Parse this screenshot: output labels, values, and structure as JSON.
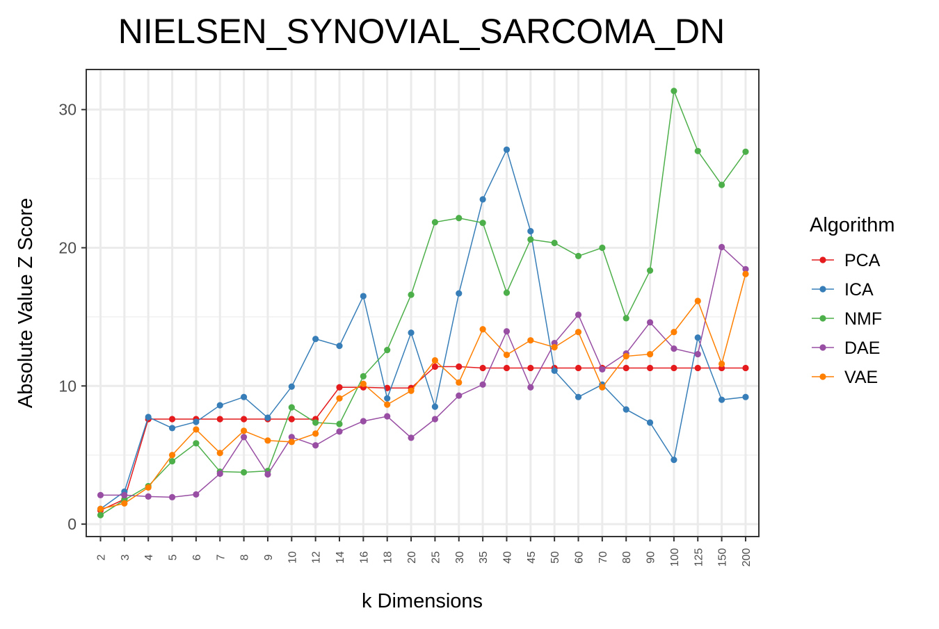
{
  "chart_data": {
    "type": "line",
    "title": "NIELSEN_SYNOVIAL_SARCOMA_DN",
    "xlabel": "k Dimensions",
    "ylabel": "Absolute Value Z Score",
    "categories": [
      "2",
      "3",
      "4",
      "5",
      "6",
      "7",
      "8",
      "9",
      "10",
      "12",
      "14",
      "16",
      "18",
      "20",
      "25",
      "30",
      "35",
      "40",
      "45",
      "50",
      "60",
      "70",
      "80",
      "90",
      "100",
      "125",
      "150",
      "200"
    ],
    "yticks": [
      0,
      10,
      20,
      30
    ],
    "ylim": [
      -0.9,
      32.9
    ],
    "grid": true,
    "legend": {
      "title": "Algorithm",
      "placement": "right"
    },
    "series": [
      {
        "name": "PCA",
        "color": "#e41a1c",
        "values": [
          1.0,
          1.8,
          7.6,
          7.6,
          7.6,
          7.6,
          7.6,
          7.6,
          7.6,
          7.6,
          9.9,
          9.9,
          9.85,
          9.85,
          11.4,
          11.4,
          11.3,
          11.3,
          11.3,
          11.3,
          11.3,
          11.3,
          11.3,
          11.3,
          11.3,
          11.3,
          11.3,
          11.3
        ]
      },
      {
        "name": "ICA",
        "color": "#377eb8",
        "values": [
          1.1,
          2.35,
          7.75,
          6.95,
          7.4,
          8.6,
          9.2,
          7.7,
          9.95,
          13.4,
          12.9,
          16.5,
          9.1,
          13.85,
          8.5,
          16.7,
          23.5,
          27.1,
          21.2,
          11.1,
          9.2,
          10.1,
          8.3,
          7.35,
          4.65,
          13.5,
          9.0,
          9.2
        ]
      },
      {
        "name": "NMF",
        "color": "#4daf4a",
        "values": [
          0.65,
          1.75,
          2.75,
          4.55,
          5.85,
          3.8,
          3.75,
          3.85,
          8.45,
          7.35,
          7.25,
          10.7,
          12.6,
          16.6,
          21.85,
          22.15,
          21.8,
          16.75,
          20.6,
          20.35,
          19.4,
          20.0,
          14.9,
          18.35,
          31.35,
          27.0,
          24.55,
          26.95
        ]
      },
      {
        "name": "DAE",
        "color": "#984ea3",
        "values": [
          2.1,
          2.1,
          2.0,
          1.95,
          2.15,
          3.65,
          6.3,
          3.6,
          6.3,
          5.7,
          6.7,
          7.45,
          7.8,
          6.25,
          7.6,
          9.3,
          10.1,
          13.95,
          9.9,
          13.1,
          15.15,
          11.2,
          12.35,
          14.6,
          12.7,
          12.3,
          20.05,
          18.45
        ]
      },
      {
        "name": "VAE",
        "color": "#ff7f00",
        "values": [
          1.1,
          1.5,
          2.65,
          5.0,
          6.85,
          5.15,
          6.75,
          6.05,
          5.95,
          6.55,
          9.1,
          10.15,
          8.65,
          9.65,
          11.85,
          10.25,
          14.1,
          12.25,
          13.3,
          12.8,
          13.9,
          9.9,
          12.15,
          12.3,
          13.9,
          16.15,
          11.6,
          18.1
        ]
      }
    ]
  }
}
